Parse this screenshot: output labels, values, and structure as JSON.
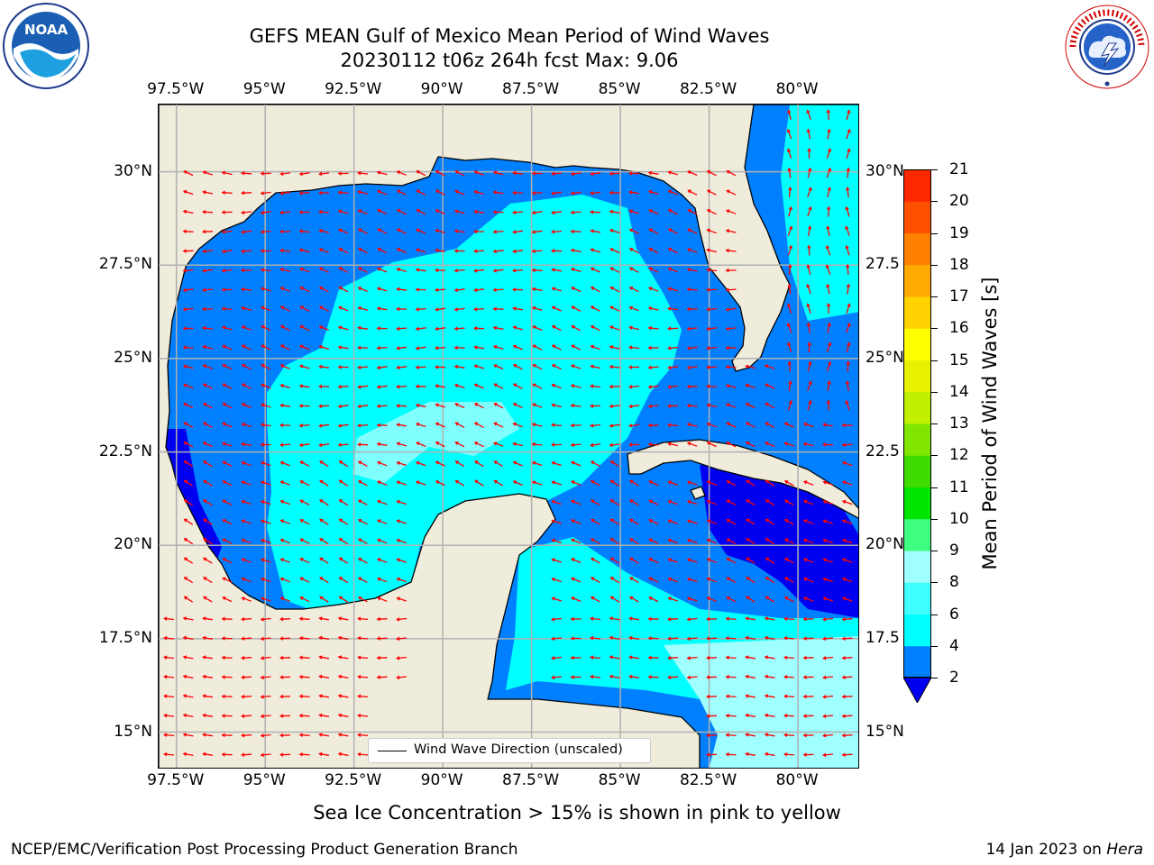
{
  "title": {
    "line1": "GEFS MEAN Gulf of Mexico Mean Period of Wind Waves",
    "line2": "20230112 t06z 264h fcst   Max: 9.06"
  },
  "logos": {
    "left_icon": "noaa-logo-icon",
    "left_text": "NOAA",
    "right_icon": "national-weather-service-logo-icon",
    "right_text": "NATIONAL WEATHER SERVICE"
  },
  "map": {
    "lon_labels_top": [
      "97.5°W",
      "95°W",
      "92.5°W",
      "90°W",
      "87.5°W",
      "85°W",
      "82.5°W",
      "80°W"
    ],
    "lon_labels_bottom": [
      "97.5°W",
      "95°W",
      "92.5°W",
      "90°W",
      "87.5°W",
      "85°W",
      "82.5°W",
      "80°W"
    ],
    "lat_labels_left": [
      "30°N",
      "27.5°N",
      "25°N",
      "22.5°N",
      "20°N",
      "17.5°N",
      "15°N"
    ],
    "lat_labels_right": [
      "30°N",
      "27.5",
      "25°N",
      "22.5",
      "20°N",
      "17.5",
      "15°N"
    ],
    "lon_values": [
      -97.5,
      -95,
      -92.5,
      -90,
      -87.5,
      -85,
      -82.5,
      -80
    ],
    "lat_values": [
      30,
      27.5,
      25,
      22.5,
      20,
      17.5,
      15
    ],
    "extent": {
      "lon_min": -98,
      "lon_max": -78.25,
      "lat_min": 14,
      "lat_max": 31.8
    },
    "grid": true,
    "legend_label": "Wind Wave Direction (unscaled)",
    "colors": {
      "land": "#efecdc",
      "arrow": "#ff0000",
      "grid": "#b0b0b0",
      "coast": "#000000"
    }
  },
  "colorbar": {
    "label": "Mean Period of Wind Waves [s]",
    "ticks": [
      "2",
      "4",
      "6",
      "8",
      "9",
      "10",
      "11",
      "12",
      "13",
      "14",
      "15",
      "16",
      "17",
      "18",
      "19",
      "20",
      "21"
    ],
    "colors": [
      "#0000f0",
      "#0080ff",
      "#00ffff",
      "#40ffff",
      "#a0ffff",
      "#40ff80",
      "#00e600",
      "#40dc00",
      "#80e600",
      "#c0f000",
      "#e6f000",
      "#ffff00",
      "#ffd200",
      "#ffaa00",
      "#ff8000",
      "#ff5000",
      "#ff2800",
      "#ff0000"
    ]
  },
  "note": "Sea Ice Concentration > 15% is shown in pink to yellow",
  "footer": {
    "left": "NCEP/EMC/Verification Post Processing Product Generation Branch",
    "right_prefix": "14 Jan 2023 on ",
    "right_host": "Hera"
  }
}
